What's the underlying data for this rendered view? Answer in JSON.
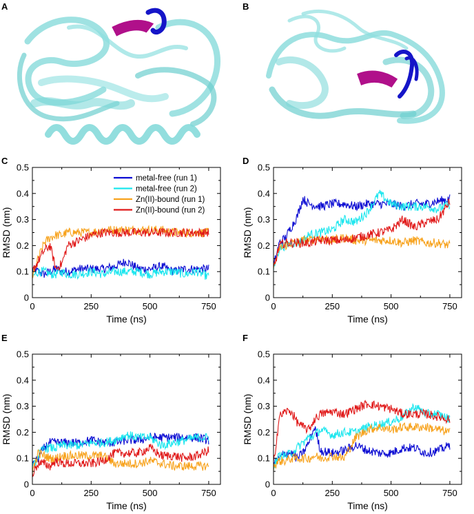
{
  "figure": {
    "panel_labels": [
      "A",
      "B",
      "C",
      "D",
      "E",
      "F"
    ],
    "protein_color": "#7fd8d8",
    "highlight_colors": [
      "#1515c8",
      "#b0108a"
    ]
  },
  "chart_data": [
    {
      "panel": "C",
      "type": "line",
      "xlabel": "Time (ns)",
      "ylabel": "RMSD (nm)",
      "xlim": [
        0,
        800
      ],
      "ylim": [
        0,
        0.5
      ],
      "xticks": [
        "0",
        "250",
        "500",
        "750"
      ],
      "yticks": [
        "0",
        "0.1",
        "0.2",
        "0.3",
        "0.4",
        "0.5"
      ],
      "grid": false,
      "legend": "top-right",
      "x": [
        0,
        25,
        50,
        75,
        100,
        125,
        150,
        200,
        250,
        300,
        350,
        400,
        450,
        500,
        550,
        600,
        650,
        700,
        750
      ],
      "series": [
        {
          "name": "metal-free (run 1)",
          "color": "#0a0ad2",
          "values": [
            0.11,
            0.1,
            0.09,
            0.1,
            0.11,
            0.1,
            0.1,
            0.11,
            0.11,
            0.11,
            0.12,
            0.14,
            0.11,
            0.11,
            0.12,
            0.1,
            0.11,
            0.11,
            0.11
          ]
        },
        {
          "name": "metal-free (run 2)",
          "color": "#1ae6ee",
          "values": [
            0.08,
            0.1,
            0.1,
            0.09,
            0.09,
            0.1,
            0.09,
            0.09,
            0.1,
            0.09,
            0.1,
            0.1,
            0.1,
            0.09,
            0.1,
            0.1,
            0.09,
            0.1,
            0.08
          ]
        },
        {
          "name": "Zn(II)-bound (run 1)",
          "color": "#f7a21c",
          "values": [
            0.08,
            0.15,
            0.21,
            0.23,
            0.24,
            0.24,
            0.25,
            0.25,
            0.25,
            0.26,
            0.26,
            0.26,
            0.26,
            0.26,
            0.26,
            0.25,
            0.25,
            0.25,
            0.25
          ]
        },
        {
          "name": "Zn(II)-bound (run 2)",
          "color": "#e01818",
          "values": [
            0.1,
            0.14,
            0.18,
            0.2,
            0.11,
            0.13,
            0.2,
            0.22,
            0.24,
            0.25,
            0.25,
            0.25,
            0.25,
            0.25,
            0.25,
            0.25,
            0.25,
            0.25,
            0.25
          ]
        }
      ]
    },
    {
      "panel": "D",
      "type": "line",
      "xlabel": "Time (ns)",
      "ylabel": "RMSD (nm)",
      "xlim": [
        0,
        800
      ],
      "ylim": [
        0,
        0.5
      ],
      "xticks": [
        "0",
        "250",
        "500",
        "750"
      ],
      "yticks": [
        "0",
        "0.1",
        "0.2",
        "0.3",
        "0.4",
        "0.5"
      ],
      "grid": false,
      "x": [
        0,
        25,
        50,
        75,
        100,
        125,
        150,
        200,
        250,
        300,
        350,
        400,
        450,
        500,
        550,
        600,
        650,
        700,
        750
      ],
      "series": [
        {
          "name": "metal-free (run 1)",
          "color": "#0a0ad2",
          "values": [
            0.12,
            0.21,
            0.23,
            0.27,
            0.31,
            0.38,
            0.36,
            0.35,
            0.36,
            0.36,
            0.35,
            0.36,
            0.36,
            0.36,
            0.35,
            0.36,
            0.36,
            0.37,
            0.38
          ]
        },
        {
          "name": "metal-free (run 2)",
          "color": "#1ae6ee",
          "values": [
            0.11,
            0.19,
            0.2,
            0.21,
            0.21,
            0.22,
            0.24,
            0.25,
            0.26,
            0.3,
            0.29,
            0.33,
            0.4,
            0.36,
            0.35,
            0.35,
            0.35,
            0.34,
            0.36
          ]
        },
        {
          "name": "Zn(II)-bound (run 1)",
          "color": "#f7a21c",
          "values": [
            0.11,
            0.19,
            0.2,
            0.21,
            0.21,
            0.22,
            0.22,
            0.23,
            0.22,
            0.23,
            0.22,
            0.22,
            0.22,
            0.22,
            0.21,
            0.22,
            0.21,
            0.21,
            0.2
          ]
        },
        {
          "name": "Zn(II)-bound (run 2)",
          "color": "#e01818",
          "values": [
            0.11,
            0.2,
            0.21,
            0.21,
            0.21,
            0.21,
            0.21,
            0.22,
            0.22,
            0.22,
            0.23,
            0.24,
            0.25,
            0.26,
            0.3,
            0.27,
            0.29,
            0.3,
            0.37
          ]
        }
      ]
    },
    {
      "panel": "E",
      "type": "line",
      "xlabel": "Time (ns)",
      "ylabel": "RMSD (nm)",
      "xlim": [
        0,
        800
      ],
      "ylim": [
        0,
        0.5
      ],
      "xticks": [
        "0",
        "250",
        "500",
        "750"
      ],
      "yticks": [
        "0",
        "0.1",
        "0.2",
        "0.3",
        "0.4",
        "0.5"
      ],
      "grid": false,
      "x": [
        0,
        25,
        50,
        75,
        100,
        125,
        150,
        200,
        250,
        300,
        350,
        400,
        450,
        500,
        550,
        600,
        650,
        700,
        750
      ],
      "series": [
        {
          "name": "metal-free (run 1)",
          "color": "#0a0ad2",
          "values": [
            0.07,
            0.1,
            0.14,
            0.16,
            0.16,
            0.16,
            0.16,
            0.16,
            0.17,
            0.16,
            0.16,
            0.17,
            0.17,
            0.18,
            0.18,
            0.18,
            0.18,
            0.18,
            0.17
          ]
        },
        {
          "name": "metal-free (run 2)",
          "color": "#1ae6ee",
          "values": [
            0.06,
            0.11,
            0.14,
            0.14,
            0.14,
            0.15,
            0.15,
            0.15,
            0.16,
            0.16,
            0.17,
            0.19,
            0.18,
            0.18,
            0.15,
            0.16,
            0.17,
            0.18,
            0.18
          ]
        },
        {
          "name": "Zn(II)-bound (run 1)",
          "color": "#f7a21c",
          "values": [
            0.05,
            0.12,
            0.11,
            0.1,
            0.1,
            0.11,
            0.11,
            0.11,
            0.11,
            0.11,
            0.08,
            0.08,
            0.08,
            0.09,
            0.08,
            0.07,
            0.07,
            0.07,
            0.07
          ]
        },
        {
          "name": "Zn(II)-bound (run 2)",
          "color": "#e01818",
          "values": [
            0.04,
            0.08,
            0.08,
            0.07,
            0.09,
            0.08,
            0.08,
            0.08,
            0.08,
            0.09,
            0.12,
            0.12,
            0.12,
            0.14,
            0.11,
            0.11,
            0.1,
            0.11,
            0.13
          ]
        }
      ]
    },
    {
      "panel": "F",
      "type": "line",
      "xlabel": "Time (ns)",
      "ylabel": "RMSD (nm)",
      "xlim": [
        0,
        800
      ],
      "ylim": [
        0,
        0.5
      ],
      "xticks": [
        "0",
        "250",
        "500",
        "750"
      ],
      "yticks": [
        "0",
        "0.1",
        "0.2",
        "0.3",
        "0.4",
        "0.5"
      ],
      "grid": false,
      "x": [
        0,
        25,
        50,
        75,
        100,
        125,
        150,
        175,
        200,
        250,
        300,
        350,
        400,
        450,
        500,
        550,
        600,
        650,
        700,
        750
      ],
      "series": [
        {
          "name": "metal-free (run 1)",
          "color": "#0a0ad2",
          "values": [
            0.08,
            0.1,
            0.12,
            0.12,
            0.1,
            0.12,
            0.16,
            0.22,
            0.13,
            0.12,
            0.13,
            0.15,
            0.13,
            0.12,
            0.12,
            0.14,
            0.14,
            0.12,
            0.13,
            0.15
          ]
        },
        {
          "name": "metal-free (run 2)",
          "color": "#1ae6ee",
          "values": [
            0.07,
            0.11,
            0.11,
            0.12,
            0.14,
            0.16,
            0.18,
            0.19,
            0.21,
            0.19,
            0.2,
            0.2,
            0.22,
            0.23,
            0.24,
            0.26,
            0.3,
            0.27,
            0.27,
            0.25
          ]
        },
        {
          "name": "Zn(II)-bound (run 1)",
          "color": "#f7a21c",
          "values": [
            0.07,
            0.09,
            0.09,
            0.1,
            0.1,
            0.1,
            0.1,
            0.11,
            0.1,
            0.11,
            0.1,
            0.18,
            0.21,
            0.22,
            0.21,
            0.22,
            0.22,
            0.22,
            0.21,
            0.2
          ]
        },
        {
          "name": "Zn(II)-bound (run 2)",
          "color": "#e01818",
          "values": [
            0.08,
            0.26,
            0.28,
            0.28,
            0.24,
            0.22,
            0.21,
            0.25,
            0.27,
            0.28,
            0.27,
            0.29,
            0.31,
            0.3,
            0.29,
            0.27,
            0.27,
            0.27,
            0.26,
            0.25
          ]
        }
      ]
    }
  ]
}
